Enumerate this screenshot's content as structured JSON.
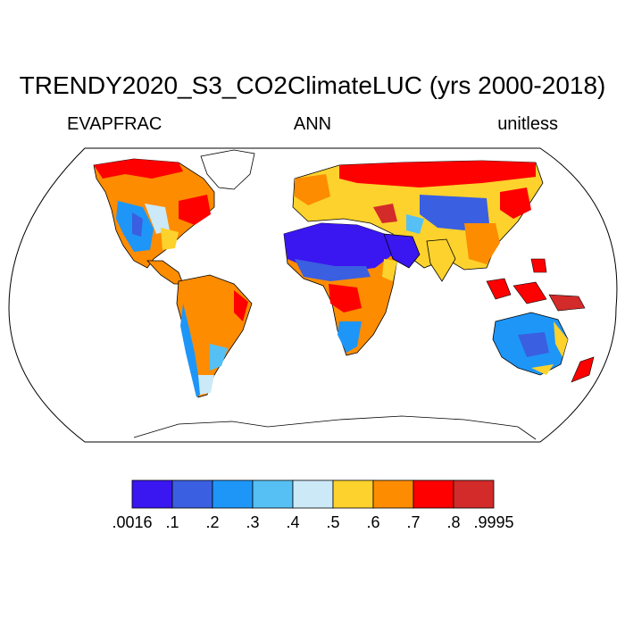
{
  "title": "TRENDY2020_S3_CO2ClimateLUC (yrs 2000-2018)",
  "left_label": "EVAPFRAC",
  "center_label": "ANN",
  "right_label": "unitless",
  "colorbar": {
    "colors": [
      "#3a16f0",
      "#3a5fe0",
      "#1e96f8",
      "#56c0f4",
      "#cce9f8",
      "#fdd22c",
      "#fd8c00",
      "#fe0000",
      "#d32a2a"
    ],
    "labels": [
      ".0016",
      ".1",
      ".2",
      ".3",
      ".4",
      ".5",
      ".6",
      ".7",
      ".8",
      ".9995"
    ]
  }
}
